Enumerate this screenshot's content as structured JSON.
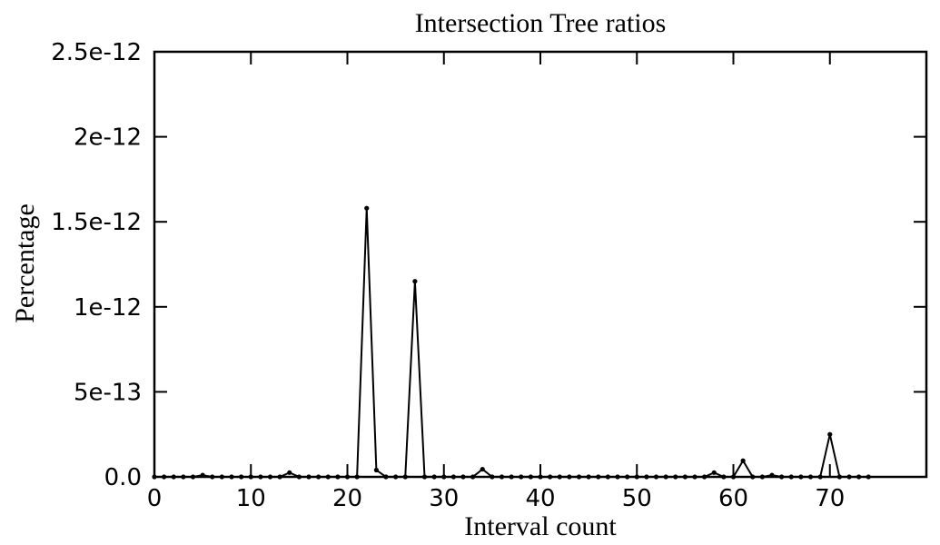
{
  "chart_data": {
    "type": "line",
    "title": "Intersection Tree ratios",
    "xlabel": "Interval count",
    "ylabel": "Percentage",
    "xlim": [
      0,
      80
    ],
    "ylim": [
      0,
      2.5e-12
    ],
    "grid": false,
    "legend": "none",
    "line_color": "#000000",
    "xticks": [
      0,
      10,
      20,
      30,
      40,
      50,
      60,
      70
    ],
    "xtick_labels": [
      "0",
      "10",
      "20",
      "30",
      "40",
      "50",
      "60",
      "70"
    ],
    "yticks": [
      0,
      5e-13,
      1e-12,
      1.5e-12,
      2e-12,
      2.5e-12
    ],
    "ytick_labels": [
      "0.0",
      "5e-13",
      "1e-12",
      "1.5e-12",
      "2e-12",
      "2.5e-12"
    ],
    "series": [
      {
        "x": [
          0,
          1,
          2,
          3,
          4,
          5,
          6,
          7,
          8,
          9,
          10,
          11,
          12,
          13,
          14,
          15,
          16,
          17,
          18,
          19,
          20,
          21,
          22,
          23,
          24,
          25,
          26,
          27,
          28,
          29,
          30,
          31,
          32,
          33,
          34,
          35,
          36,
          37,
          38,
          39,
          40,
          41,
          42,
          43,
          44,
          45,
          46,
          47,
          48,
          49,
          50,
          51,
          52,
          53,
          54,
          55,
          56,
          57,
          58,
          59,
          60,
          61,
          62,
          63,
          64,
          65,
          66,
          67,
          68,
          69,
          70,
          71,
          72,
          73,
          74
        ],
        "y": [
          0,
          0,
          0,
          0,
          0,
          1e-14,
          0,
          0,
          0,
          0,
          0,
          0,
          0,
          0,
          2.5e-14,
          0,
          0,
          0,
          0,
          0,
          0,
          0,
          1.58e-12,
          4e-14,
          0,
          0,
          0,
          1.15e-12,
          0,
          0,
          0,
          0,
          0,
          0,
          4.5e-14,
          0,
          0,
          0,
          0,
          0,
          0,
          0,
          0,
          0,
          0,
          0,
          0,
          0,
          0,
          0,
          0,
          0,
          0,
          0,
          0,
          0,
          0,
          0,
          2.5e-14,
          0,
          0,
          9.5e-14,
          0,
          0,
          1e-14,
          0,
          0,
          0,
          0,
          0,
          2.5e-13,
          0,
          0,
          0,
          0
        ]
      }
    ]
  }
}
